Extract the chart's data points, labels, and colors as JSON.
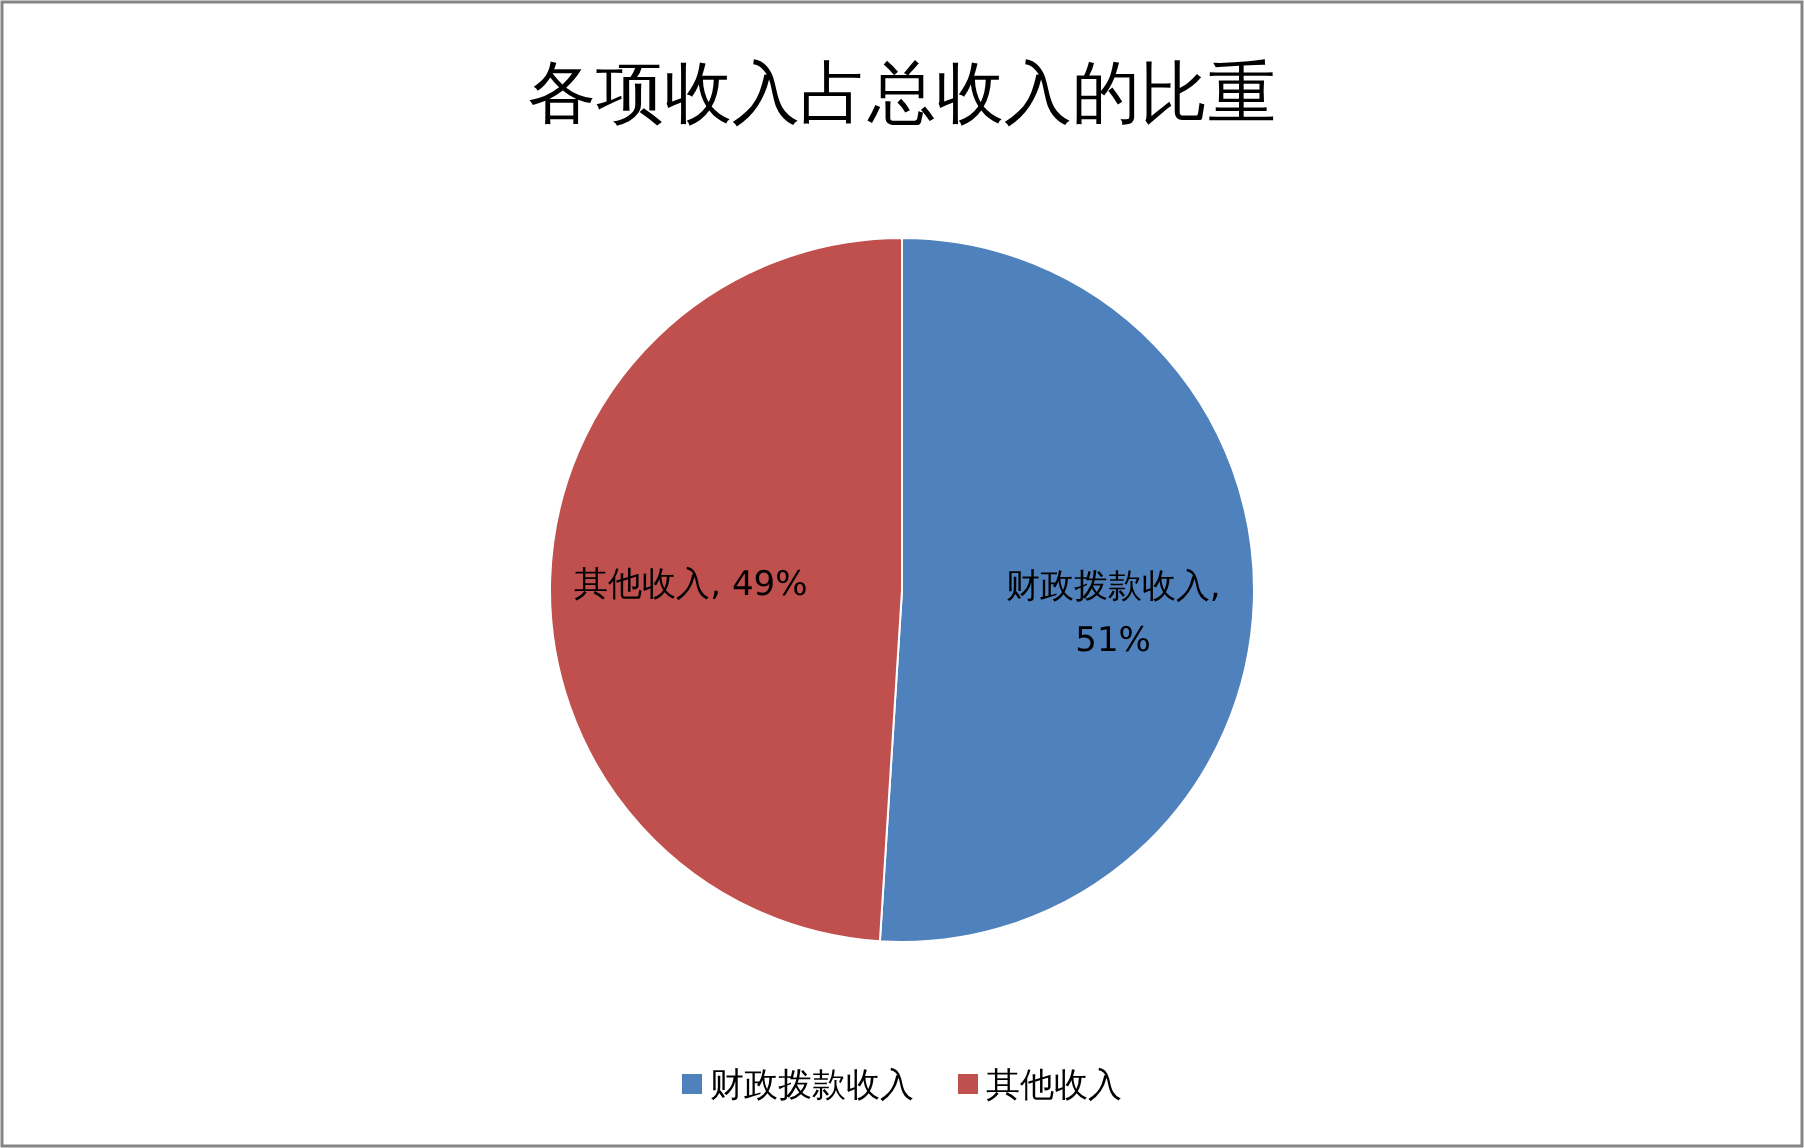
{
  "chart_data": {
    "type": "pie",
    "title": "各项收入占总收入的比重",
    "categories": [
      "财政拨款收入",
      "其他收入"
    ],
    "values": [
      51,
      49
    ],
    "colors": [
      "#4f81bd",
      "#c0504d"
    ],
    "value_labels": [
      "财政拨款收入, 51%",
      "其他收入, 49%"
    ],
    "legend": "bottom"
  }
}
